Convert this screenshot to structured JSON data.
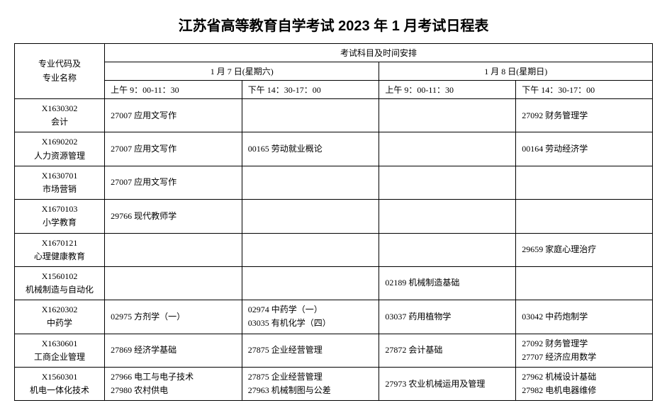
{
  "title": "江苏省高等教育自学考试 2023 年 1 月考试日程表",
  "header": {
    "major": "专业代码及\n专业名称",
    "schedule": "考试科目及时间安排",
    "day1": "1 月 7 日(星期六)",
    "day2": "1 月 8 日(星期日)",
    "slot1": "上午 9：00-11：30",
    "slot2": "下午 14：30-17：00",
    "slot3": "上午 9：00-11：30",
    "slot4": "下午 14：30-17：00"
  },
  "rows": [
    {
      "code": "X1630302",
      "name": "会计",
      "slot1": [
        "27007 应用文写作"
      ],
      "slot2": [],
      "slot3": [],
      "slot4": [
        "27092 财务管理学"
      ]
    },
    {
      "code": "X1690202",
      "name": "人力资源管理",
      "slot1": [
        "27007 应用文写作"
      ],
      "slot2": [
        "00165 劳动就业概论"
      ],
      "slot3": [],
      "slot4": [
        "00164 劳动经济学"
      ]
    },
    {
      "code": "X1630701",
      "name": "市场营销",
      "slot1": [
        "27007 应用文写作"
      ],
      "slot2": [],
      "slot3": [],
      "slot4": []
    },
    {
      "code": "X1670103",
      "name": "小学教育",
      "slot1": [
        "29766 现代教师学"
      ],
      "slot2": [],
      "slot3": [],
      "slot4": []
    },
    {
      "code": "X1670121",
      "name": "心理健康教育",
      "slot1": [],
      "slot2": [],
      "slot3": [],
      "slot4": [
        "29659 家庭心理治疗"
      ]
    },
    {
      "code": "X1560102",
      "name": "机械制造与自动化",
      "slot1": [],
      "slot2": [],
      "slot3": [
        "02189 机械制造基础"
      ],
      "slot4": []
    },
    {
      "code": "X1620302",
      "name": "中药学",
      "slot1": [
        "02975 方剂学（一）"
      ],
      "slot2": [
        "02974 中药学（一）",
        "03035 有机化学（四）"
      ],
      "slot3": [
        "03037 药用植物学"
      ],
      "slot4": [
        "03042 中药炮制学"
      ]
    },
    {
      "code": "X1630601",
      "name": "工商企业管理",
      "slot1": [
        "27869 经济学基础"
      ],
      "slot2": [
        "27875 企业经营管理"
      ],
      "slot3": [
        "27872 会计基础"
      ],
      "slot4": [
        "27092 财务管理学",
        "27707 经济应用数学"
      ]
    },
    {
      "code": "X1560301",
      "name": "机电一体化技术",
      "slot1": [
        "27966 电工与电子技术",
        "27980 农村供电"
      ],
      "slot2": [
        "27875 企业经营管理",
        "27963 机械制图与公差"
      ],
      "slot3": [
        "27973 农业机械运用及管理"
      ],
      "slot4": [
        "27962 机械设计基础",
        "27982 电机电器维修"
      ]
    }
  ],
  "colors": {
    "background": "#ffffff",
    "border": "#000000",
    "text": "#000000"
  }
}
